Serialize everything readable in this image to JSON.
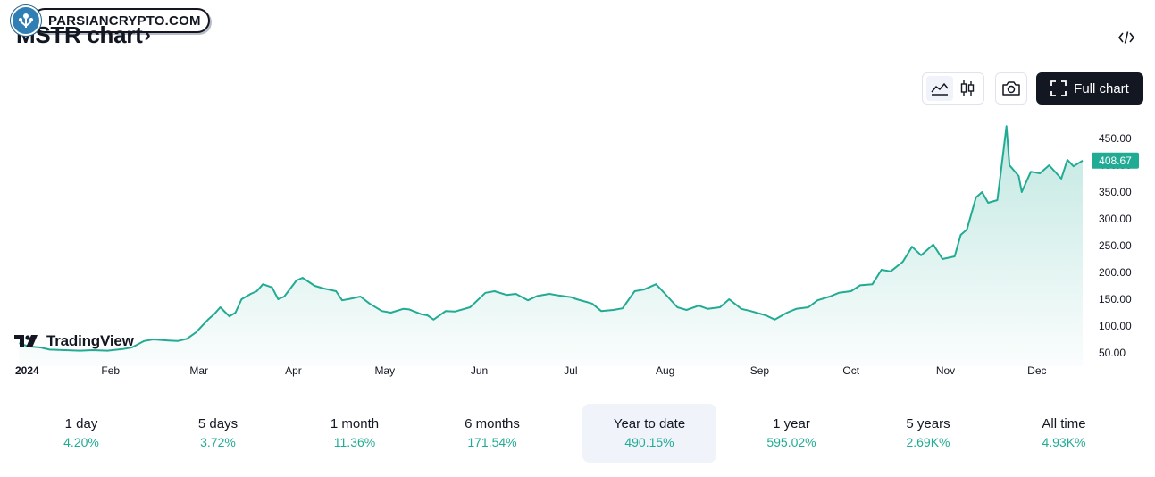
{
  "badge": {
    "text": "PARSIANCRYPTO.COM"
  },
  "header": {
    "title": "MSTR chart",
    "chevron": "›"
  },
  "toolbar": {
    "full_chart_label": "Full chart"
  },
  "watermark": {
    "text": "TradingView"
  },
  "colors": {
    "line": "#22ab94",
    "price_tag": "#22ab94",
    "text": "#131722",
    "axis_text": "#131722"
  },
  "chart_data": {
    "type": "area",
    "symbol": "MSTR",
    "last_value": 408.67,
    "last_value_label": "408.67",
    "ylim": [
      50,
      475
    ],
    "y_ticks": [
      {
        "value": 50,
        "label": "50.00"
      },
      {
        "value": 100,
        "label": "100.00"
      },
      {
        "value": 150,
        "label": "150.00"
      },
      {
        "value": 200,
        "label": "200.00"
      },
      {
        "value": 250,
        "label": "250.00"
      },
      {
        "value": 300,
        "label": "300.00"
      },
      {
        "value": 350,
        "label": "350.00"
      },
      {
        "value": 400,
        "label": "400.00"
      },
      {
        "value": 450,
        "label": "450.00"
      }
    ],
    "x_ticks": [
      {
        "date": "2024-01-01",
        "label": "2024",
        "bold": true
      },
      {
        "date": "2024-02-01",
        "label": "Feb"
      },
      {
        "date": "2024-03-01",
        "label": "Mar"
      },
      {
        "date": "2024-04-01",
        "label": "Apr"
      },
      {
        "date": "2024-05-01",
        "label": "May"
      },
      {
        "date": "2024-06-01",
        "label": "Jun"
      },
      {
        "date": "2024-07-01",
        "label": "Jul"
      },
      {
        "date": "2024-08-01",
        "label": "Aug"
      },
      {
        "date": "2024-09-01",
        "label": "Sep"
      },
      {
        "date": "2024-10-01",
        "label": "Oct"
      },
      {
        "date": "2024-11-01",
        "label": "Nov"
      },
      {
        "date": "2024-12-01",
        "label": "Dec"
      }
    ],
    "x_range": [
      "2024-01-01",
      "2024-12-16"
    ],
    "series": [
      {
        "values": [
          [
            "2024-01-02",
            68
          ],
          [
            "2024-01-05",
            62
          ],
          [
            "2024-01-09",
            60
          ],
          [
            "2024-01-12",
            56
          ],
          [
            "2024-01-17",
            55
          ],
          [
            "2024-01-22",
            54
          ],
          [
            "2024-01-26",
            55
          ],
          [
            "2024-01-31",
            54
          ],
          [
            "2024-02-05",
            57
          ],
          [
            "2024-02-08",
            60
          ],
          [
            "2024-02-12",
            72
          ],
          [
            "2024-02-15",
            75
          ],
          [
            "2024-02-20",
            73
          ],
          [
            "2024-02-23",
            72
          ],
          [
            "2024-02-26",
            76
          ],
          [
            "2024-02-29",
            88
          ],
          [
            "2024-03-04",
            112
          ],
          [
            "2024-03-06",
            122
          ],
          [
            "2024-03-08",
            135
          ],
          [
            "2024-03-11",
            118
          ],
          [
            "2024-03-13",
            125
          ],
          [
            "2024-03-15",
            150
          ],
          [
            "2024-03-18",
            160
          ],
          [
            "2024-03-20",
            165
          ],
          [
            "2024-03-22",
            178
          ],
          [
            "2024-03-25",
            172
          ],
          [
            "2024-03-27",
            150
          ],
          [
            "2024-03-29",
            155
          ],
          [
            "2024-04-02",
            185
          ],
          [
            "2024-04-04",
            190
          ],
          [
            "2024-04-08",
            175
          ],
          [
            "2024-04-11",
            170
          ],
          [
            "2024-04-15",
            165
          ],
          [
            "2024-04-17",
            148
          ],
          [
            "2024-04-19",
            150
          ],
          [
            "2024-04-23",
            155
          ],
          [
            "2024-04-26",
            142
          ],
          [
            "2024-04-30",
            128
          ],
          [
            "2024-05-03",
            125
          ],
          [
            "2024-05-07",
            132
          ],
          [
            "2024-05-09",
            131
          ],
          [
            "2024-05-13",
            122
          ],
          [
            "2024-05-15",
            120
          ],
          [
            "2024-05-17",
            112
          ],
          [
            "2024-05-21",
            128
          ],
          [
            "2024-05-24",
            127
          ],
          [
            "2024-05-29",
            135
          ],
          [
            "2024-06-03",
            162
          ],
          [
            "2024-06-06",
            165
          ],
          [
            "2024-06-10",
            158
          ],
          [
            "2024-06-13",
            160
          ],
          [
            "2024-06-17",
            148
          ],
          [
            "2024-06-20",
            156
          ],
          [
            "2024-06-24",
            160
          ],
          [
            "2024-06-27",
            157
          ],
          [
            "2024-07-01",
            154
          ],
          [
            "2024-07-03",
            150
          ],
          [
            "2024-07-08",
            142
          ],
          [
            "2024-07-11",
            128
          ],
          [
            "2024-07-15",
            130
          ],
          [
            "2024-07-18",
            133
          ],
          [
            "2024-07-22",
            165
          ],
          [
            "2024-07-25",
            168
          ],
          [
            "2024-07-29",
            178
          ],
          [
            "2024-08-01",
            160
          ],
          [
            "2024-08-05",
            135
          ],
          [
            "2024-08-08",
            130
          ],
          [
            "2024-08-12",
            138
          ],
          [
            "2024-08-15",
            132
          ],
          [
            "2024-08-19",
            135
          ],
          [
            "2024-08-22",
            150
          ],
          [
            "2024-08-26",
            132
          ],
          [
            "2024-08-29",
            128
          ],
          [
            "2024-09-03",
            120
          ],
          [
            "2024-09-06",
            112
          ],
          [
            "2024-09-10",
            125
          ],
          [
            "2024-09-13",
            132
          ],
          [
            "2024-09-17",
            135
          ],
          [
            "2024-09-20",
            148
          ],
          [
            "2024-09-24",
            155
          ],
          [
            "2024-09-27",
            162
          ],
          [
            "2024-10-01",
            165
          ],
          [
            "2024-10-04",
            176
          ],
          [
            "2024-10-08",
            178
          ],
          [
            "2024-10-11",
            205
          ],
          [
            "2024-10-14",
            202
          ],
          [
            "2024-10-18",
            220
          ],
          [
            "2024-10-21",
            248
          ],
          [
            "2024-10-24",
            232
          ],
          [
            "2024-10-28",
            252
          ],
          [
            "2024-10-31",
            225
          ],
          [
            "2024-11-04",
            230
          ],
          [
            "2024-11-06",
            270
          ],
          [
            "2024-11-08",
            280
          ],
          [
            "2024-11-11",
            340
          ],
          [
            "2024-11-13",
            350
          ],
          [
            "2024-11-15",
            330
          ],
          [
            "2024-11-18",
            335
          ],
          [
            "2024-11-19",
            380
          ],
          [
            "2024-11-21",
            473
          ],
          [
            "2024-11-22",
            400
          ],
          [
            "2024-11-25",
            380
          ],
          [
            "2024-11-26",
            350
          ],
          [
            "2024-11-29",
            388
          ],
          [
            "2024-12-02",
            385
          ],
          [
            "2024-12-05",
            400
          ],
          [
            "2024-12-09",
            375
          ],
          [
            "2024-12-11",
            410
          ],
          [
            "2024-12-13",
            398
          ],
          [
            "2024-12-16",
            408.67
          ]
        ]
      }
    ]
  },
  "periods": [
    {
      "label": "1 day",
      "value": "4.20%",
      "selected": false
    },
    {
      "label": "5 days",
      "value": "3.72%",
      "selected": false
    },
    {
      "label": "1 month",
      "value": "11.36%",
      "selected": false
    },
    {
      "label": "6 months",
      "value": "171.54%",
      "selected": false
    },
    {
      "label": "Year to date",
      "value": "490.15%",
      "selected": true
    },
    {
      "label": "1 year",
      "value": "595.02%",
      "selected": false
    },
    {
      "label": "5 years",
      "value": "2.69K%",
      "selected": false
    },
    {
      "label": "All time",
      "value": "4.93K%",
      "selected": false
    }
  ]
}
